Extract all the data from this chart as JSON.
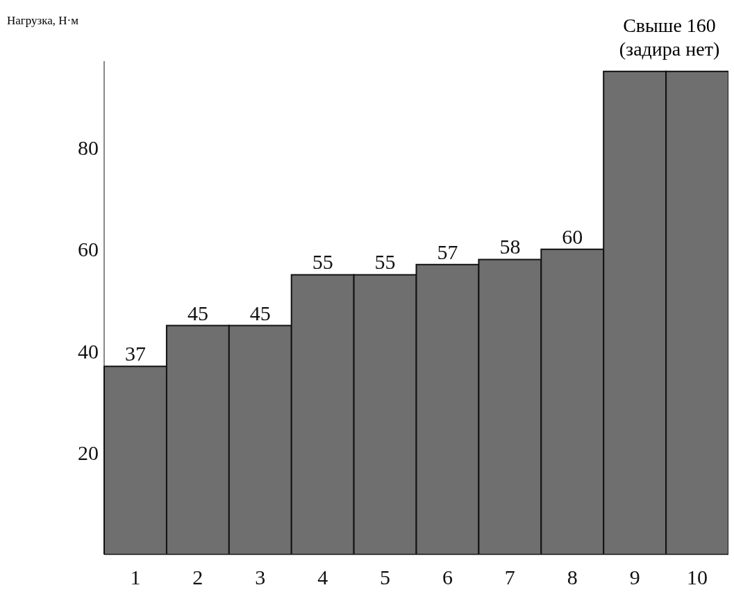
{
  "chart_data": {
    "type": "bar",
    "ylabel": "Нагрузка, Н·м",
    "categories": [
      "1",
      "2",
      "3",
      "4",
      "5",
      "6",
      "7",
      "8",
      "9",
      "10"
    ],
    "values": [
      37,
      45,
      45,
      55,
      55,
      57,
      58,
      60,
      95,
      95
    ],
    "value_labels": [
      "37",
      "45",
      "45",
      "55",
      "55",
      "57",
      "58",
      "60",
      null,
      null
    ],
    "color": "#6f6f6f",
    "ylim": [
      0,
      97
    ],
    "yticks": [
      20,
      40,
      60,
      80
    ],
    "annotations": [
      "Свыше 160 (задира нет)"
    ]
  }
}
